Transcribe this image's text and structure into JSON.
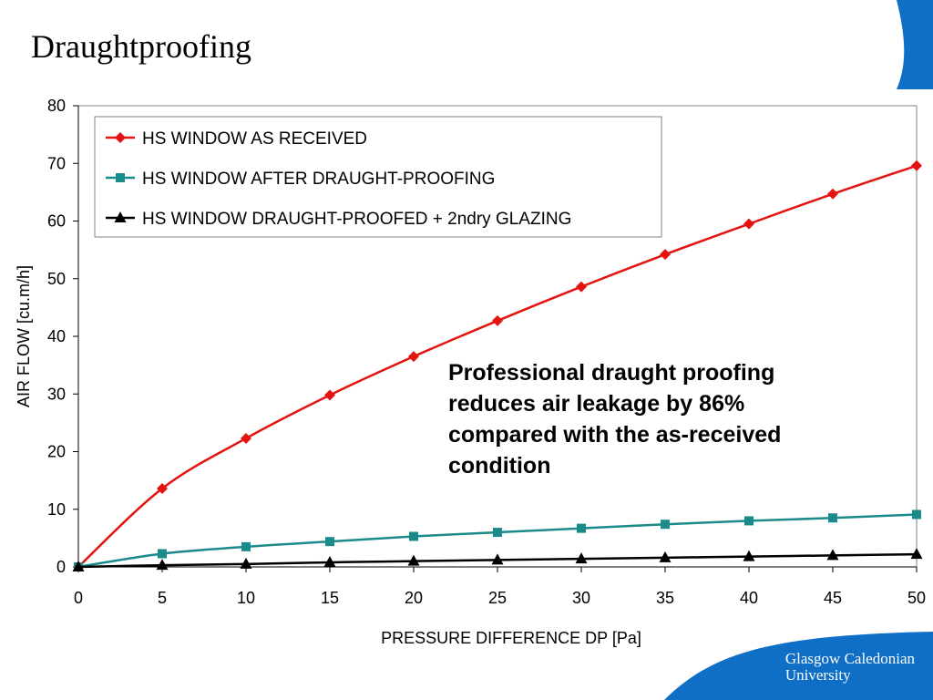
{
  "slide": {
    "title": "Draughtproofing",
    "callout": "Professional draught proofing reduces air leakage by 86% compared with the as-received condition",
    "brand_line1": "Glasgow Caledonian",
    "brand_line2": "University"
  },
  "colors": {
    "accent_blue": "#0f6fc6",
    "series_red": "#e3140f",
    "series_teal": "#1b8a8a",
    "series_black": "#000000"
  },
  "chart_data": {
    "type": "line",
    "xlabel": "PRESSURE DIFFERENCE DP [Pa]",
    "ylabel": "AIR FLOW [cu.m/h]",
    "xlim": [
      0,
      50
    ],
    "ylim": [
      0,
      80
    ],
    "xticks": [
      0,
      5,
      10,
      15,
      20,
      25,
      30,
      35,
      40,
      45,
      50
    ],
    "yticks": [
      0,
      10,
      20,
      30,
      40,
      50,
      60,
      70,
      80
    ],
    "grid": false,
    "legend_position": "top-left",
    "x": [
      0,
      5,
      10,
      15,
      20,
      25,
      30,
      35,
      40,
      45,
      50
    ],
    "series": [
      {
        "name": "HS WINDOW AS RECEIVED",
        "color": "#e3140f",
        "marker": "diamond",
        "values": [
          0,
          13.6,
          22.3,
          29.8,
          36.5,
          42.7,
          48.6,
          54.2,
          59.5,
          64.7,
          69.6
        ]
      },
      {
        "name": "HS WINDOW AFTER DRAUGHT-PROOFING",
        "color": "#1b8a8a",
        "marker": "square",
        "values": [
          0,
          2.3,
          3.5,
          4.4,
          5.3,
          6.0,
          6.7,
          7.4,
          8.0,
          8.5,
          9.1
        ]
      },
      {
        "name": "HS WINDOW DRAUGHT-PROOFED + 2ndry GLAZING",
        "color": "#000000",
        "marker": "triangle",
        "values": [
          0,
          0.3,
          0.5,
          0.8,
          1.0,
          1.2,
          1.4,
          1.6,
          1.8,
          2.0,
          2.2
        ]
      }
    ]
  }
}
